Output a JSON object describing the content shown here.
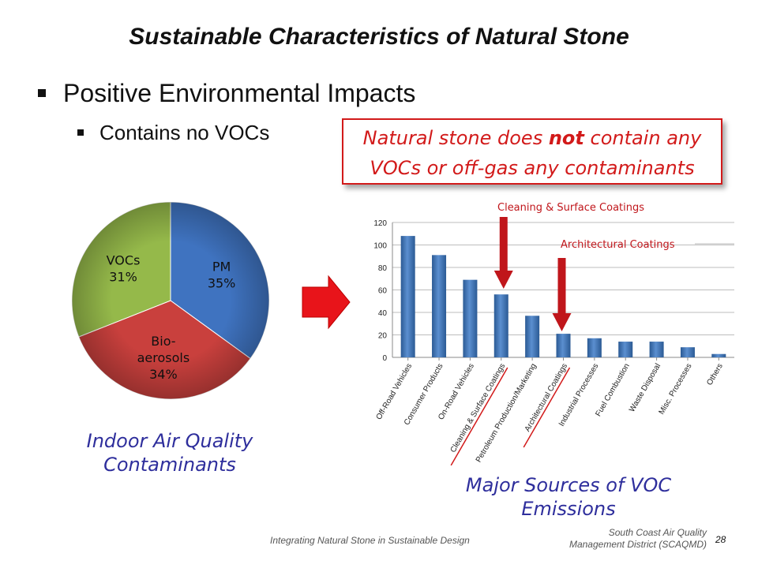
{
  "slide": {
    "title": "Sustainable Characteristics of Natural Stone",
    "bullet_1": "Positive Environmental Impacts",
    "bullet_2": "Contains no VOCs",
    "callout_before": "Natural stone does ",
    "callout_bold": "not",
    "callout_after": " contain any",
    "callout_line2": "VOCs or off-gas any contaminants",
    "caption_left_1": "Indoor Air Quality",
    "caption_left_2": "Contaminants",
    "caption_right_1": "Major Sources of VOC",
    "caption_right_2": "Emissions",
    "footer_center": "Integrating Natural Stone in Sustainable Design",
    "footer_right_1": "South Coast Air Quality",
    "footer_right_2": "Management District (SCAQMD)",
    "page_number": "28",
    "arrow_icon": "right-arrow-icon",
    "colors": {
      "callout_red": "#d21a1a",
      "caption_blue": "#2e2e9c",
      "bar_blue": "#3a6fae"
    }
  },
  "chart_data": [
    {
      "type": "pie",
      "title": "",
      "labels": [
        "PM",
        "Bio-aerosols",
        "VOCs"
      ],
      "label_lines": [
        [
          "PM",
          "35%"
        ],
        [
          "Bio-",
          "aerosols",
          "34%"
        ],
        [
          "VOCs",
          "31%"
        ]
      ],
      "values": [
        35,
        34,
        31
      ],
      "colors": [
        "#3f73c0",
        "#c9403d",
        "#95b94a"
      ]
    },
    {
      "type": "bar",
      "title": "",
      "categories": [
        "Off-Road Vehicles",
        "Consumer Products",
        "On-Road Vehicles",
        "Cleaning & Surface Coatings",
        "Petroleum Production/Marketing",
        "Architectural Coatings",
        "Industrial Processes",
        "Fuel Combustion",
        "Waste Disposal",
        "Misc. Processes",
        "Others"
      ],
      "values": [
        108,
        91,
        69,
        56,
        37,
        21,
        17,
        14,
        14,
        9,
        3
      ],
      "ylim": [
        0,
        120
      ],
      "yticks": [
        0,
        20,
        40,
        60,
        80,
        100,
        120
      ],
      "grid": true,
      "annotations": [
        {
          "text": "Cleaning & Surface Coatings",
          "category_index": 3
        },
        {
          "text": "Architectural Coatings",
          "category_index": 5
        }
      ],
      "underlined_categories": [
        3,
        5
      ]
    }
  ]
}
